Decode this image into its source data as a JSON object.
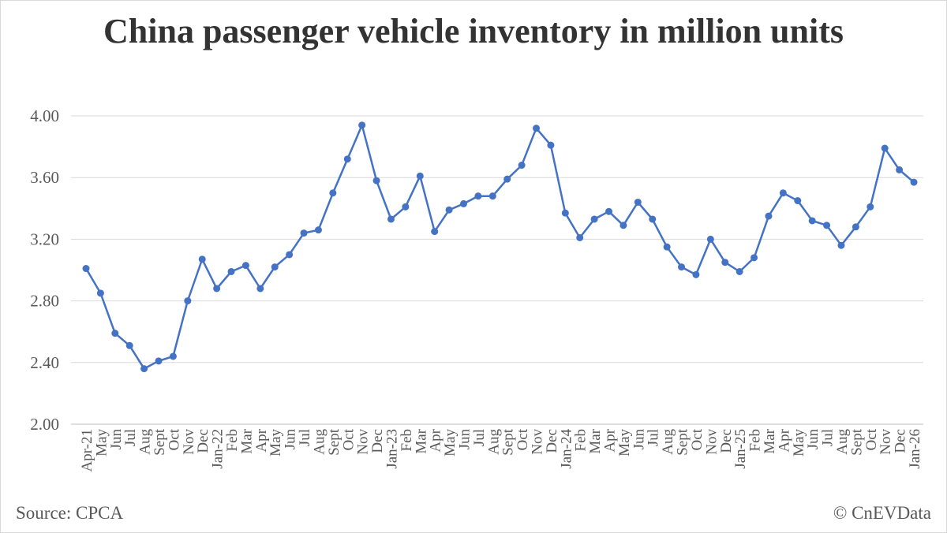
{
  "title": "China passenger vehicle inventory in million units",
  "source": "Source: CPCA",
  "credit": "© CnEVData",
  "chart_data": {
    "type": "line",
    "title": "China passenger vehicle inventory in million units",
    "xlabel": "",
    "ylabel": "",
    "ylim": [
      2.0,
      4.0
    ],
    "yticks": [
      "2.00",
      "2.40",
      "2.80",
      "3.20",
      "3.60",
      "4.00"
    ],
    "grid": true,
    "series_color": "#4472c4",
    "categories": [
      "Apr-21",
      "May",
      "Jun",
      "Jul",
      "Aug",
      "Sept",
      "Oct",
      "Nov",
      "Dec",
      "Jan-22",
      "Feb",
      "Mar",
      "Apr",
      "May",
      "Jun",
      "Jul",
      "Aug",
      "Sept",
      "Oct",
      "Nov",
      "Dec",
      "Jan-23",
      "Feb",
      "Mar",
      "Apr",
      "May",
      "Jun",
      "Jul",
      "Aug",
      "Sept",
      "Oct",
      "Nov",
      "Dec",
      "Jan-24",
      "Feb",
      "Mar",
      "Apr",
      "May",
      "Jun",
      "Jul",
      "Aug",
      "Sept",
      "Oct",
      "Nov",
      "Dec",
      "Jan-25",
      "Feb",
      "Mar",
      "Apr",
      "May",
      "Jun",
      "Jul",
      "Aug",
      "Sept",
      "Oct",
      "Nov",
      "Dec",
      "Jan-26"
    ],
    "values": [
      3.01,
      2.85,
      2.59,
      2.51,
      2.36,
      2.41,
      2.44,
      2.8,
      3.07,
      2.88,
      2.99,
      3.03,
      2.88,
      3.02,
      3.1,
      3.24,
      3.26,
      3.5,
      3.72,
      3.94,
      3.58,
      3.33,
      3.41,
      3.61,
      3.25,
      3.39,
      3.43,
      3.48,
      3.48,
      3.59,
      3.68,
      3.92,
      3.81,
      3.37,
      3.21,
      3.33,
      3.38,
      3.29,
      3.44,
      3.33,
      3.15,
      3.02,
      2.97,
      3.2,
      3.05,
      2.99,
      3.08,
      3.35,
      3.5,
      3.45,
      3.32,
      3.29,
      3.16,
      3.28,
      3.41,
      3.79,
      3.65,
      3.57
    ]
  }
}
